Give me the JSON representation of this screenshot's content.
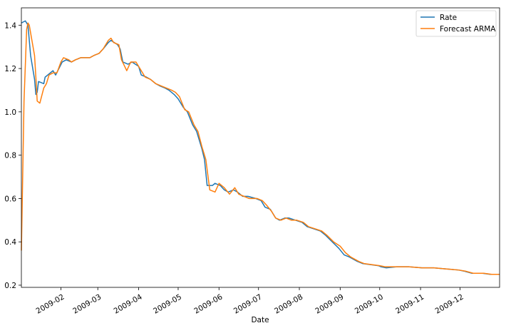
{
  "chart_data": {
    "type": "line",
    "title": "",
    "xlabel": "Date",
    "ylabel": "",
    "xlim": [
      "2009-01-02",
      "2009-12-31"
    ],
    "ylim": [
      0.19,
      1.48
    ],
    "grid": false,
    "legend_position": "top-right",
    "x_ticks": [
      "2009-02-01",
      "2009-03-01",
      "2009-04-01",
      "2009-05-01",
      "2009-06-01",
      "2009-07-01",
      "2009-08-01",
      "2009-09-01",
      "2009-10-01",
      "2009-11-01",
      "2009-12-01"
    ],
    "x_tick_labels": [
      "2009-02",
      "2009-03",
      "2009-04",
      "2009-05",
      "2009-06",
      "2009-07",
      "2009-08",
      "2009-09",
      "2009-10",
      "2009-11",
      "2009-12"
    ],
    "y_ticks": [
      0.2,
      0.4,
      0.6,
      0.8,
      1.0,
      1.2,
      1.4
    ],
    "y_tick_labels": [
      "0.2",
      "0.4",
      "0.6",
      "0.8",
      "1.0",
      "1.2",
      "1.4"
    ],
    "series": [
      {
        "name": "Rate",
        "color": "#1f77b4",
        "points": [
          [
            "2009-01-02",
            1.41
          ],
          [
            "2009-01-05",
            1.42
          ],
          [
            "2009-01-07",
            1.4
          ],
          [
            "2009-01-09",
            1.26
          ],
          [
            "2009-01-12",
            1.15
          ],
          [
            "2009-01-13",
            1.08
          ],
          [
            "2009-01-14",
            1.09
          ],
          [
            "2009-01-15",
            1.14
          ],
          [
            "2009-01-19",
            1.13
          ],
          [
            "2009-01-20",
            1.16
          ],
          [
            "2009-01-22",
            1.17
          ],
          [
            "2009-01-26",
            1.19
          ],
          [
            "2009-01-28",
            1.17
          ],
          [
            "2009-02-02",
            1.23
          ],
          [
            "2009-02-05",
            1.24
          ],
          [
            "2009-02-09",
            1.23
          ],
          [
            "2009-02-12",
            1.24
          ],
          [
            "2009-02-16",
            1.25
          ],
          [
            "2009-02-19",
            1.25
          ],
          [
            "2009-02-23",
            1.25
          ],
          [
            "2009-02-26",
            1.26
          ],
          [
            "2009-03-02",
            1.27
          ],
          [
            "2009-03-05",
            1.29
          ],
          [
            "2009-03-09",
            1.32
          ],
          [
            "2009-03-11",
            1.33
          ],
          [
            "2009-03-16",
            1.31
          ],
          [
            "2009-03-18",
            1.29
          ],
          [
            "2009-03-20",
            1.23
          ],
          [
            "2009-03-24",
            1.22
          ],
          [
            "2009-03-27",
            1.23
          ],
          [
            "2009-04-01",
            1.21
          ],
          [
            "2009-04-03",
            1.17
          ],
          [
            "2009-04-07",
            1.16
          ],
          [
            "2009-04-10",
            1.15
          ],
          [
            "2009-04-14",
            1.13
          ],
          [
            "2009-04-17",
            1.12
          ],
          [
            "2009-04-21",
            1.11
          ],
          [
            "2009-04-24",
            1.1
          ],
          [
            "2009-04-28",
            1.08
          ],
          [
            "2009-05-01",
            1.06
          ],
          [
            "2009-05-05",
            1.02
          ],
          [
            "2009-05-08",
            1.0
          ],
          [
            "2009-05-12",
            0.94
          ],
          [
            "2009-05-15",
            0.91
          ],
          [
            "2009-05-19",
            0.83
          ],
          [
            "2009-05-21",
            0.78
          ],
          [
            "2009-05-23",
            0.66
          ],
          [
            "2009-05-27",
            0.66
          ],
          [
            "2009-05-29",
            0.67
          ],
          [
            "2009-06-02",
            0.66
          ],
          [
            "2009-06-05",
            0.64
          ],
          [
            "2009-06-08",
            0.63
          ],
          [
            "2009-06-12",
            0.64
          ],
          [
            "2009-06-15",
            0.63
          ],
          [
            "2009-06-19",
            0.61
          ],
          [
            "2009-06-23",
            0.61
          ],
          [
            "2009-06-29",
            0.6
          ],
          [
            "2009-07-03",
            0.59
          ],
          [
            "2009-07-06",
            0.56
          ],
          [
            "2009-07-10",
            0.55
          ],
          [
            "2009-07-14",
            0.51
          ],
          [
            "2009-07-17",
            0.5
          ],
          [
            "2009-07-21",
            0.51
          ],
          [
            "2009-07-24",
            0.51
          ],
          [
            "2009-07-29",
            0.5
          ],
          [
            "2009-08-03",
            0.49
          ],
          [
            "2009-08-07",
            0.47
          ],
          [
            "2009-08-12",
            0.46
          ],
          [
            "2009-08-17",
            0.45
          ],
          [
            "2009-08-21",
            0.43
          ],
          [
            "2009-08-26",
            0.4
          ],
          [
            "2009-08-31",
            0.37
          ],
          [
            "2009-09-04",
            0.34
          ],
          [
            "2009-09-08",
            0.33
          ],
          [
            "2009-09-14",
            0.31
          ],
          [
            "2009-09-18",
            0.3
          ],
          [
            "2009-09-24",
            0.295
          ],
          [
            "2009-09-30",
            0.29
          ],
          [
            "2009-10-02",
            0.285
          ],
          [
            "2009-10-06",
            0.28
          ],
          [
            "2009-10-14",
            0.285
          ],
          [
            "2009-10-23",
            0.285
          ],
          [
            "2009-11-02",
            0.28
          ],
          [
            "2009-11-11",
            0.28
          ],
          [
            "2009-11-20",
            0.275
          ],
          [
            "2009-11-30",
            0.27
          ],
          [
            "2009-12-04",
            0.265
          ],
          [
            "2009-12-10",
            0.255
          ],
          [
            "2009-12-18",
            0.255
          ],
          [
            "2009-12-24",
            0.25
          ],
          [
            "2009-12-31",
            0.25
          ]
        ]
      },
      {
        "name": "Forecast ARMA",
        "color": "#ff7f0e",
        "points": [
          [
            "2009-01-02",
            0.36
          ],
          [
            "2009-01-04",
            1.05
          ],
          [
            "2009-01-06",
            1.38
          ],
          [
            "2009-01-07",
            1.41
          ],
          [
            "2009-01-08",
            1.4
          ],
          [
            "2009-01-10",
            1.33
          ],
          [
            "2009-01-12",
            1.26
          ],
          [
            "2009-01-13",
            1.16
          ],
          [
            "2009-01-14",
            1.05
          ],
          [
            "2009-01-16",
            1.04
          ],
          [
            "2009-01-19",
            1.11
          ],
          [
            "2009-01-21",
            1.13
          ],
          [
            "2009-01-23",
            1.17
          ],
          [
            "2009-01-26",
            1.18
          ],
          [
            "2009-01-29",
            1.18
          ],
          [
            "2009-02-01",
            1.23
          ],
          [
            "2009-02-03",
            1.25
          ],
          [
            "2009-02-07",
            1.24
          ],
          [
            "2009-02-09",
            1.23
          ],
          [
            "2009-02-12",
            1.24
          ],
          [
            "2009-02-16",
            1.25
          ],
          [
            "2009-02-19",
            1.25
          ],
          [
            "2009-02-23",
            1.25
          ],
          [
            "2009-02-26",
            1.26
          ],
          [
            "2009-03-02",
            1.27
          ],
          [
            "2009-03-05",
            1.29
          ],
          [
            "2009-03-09",
            1.33
          ],
          [
            "2009-03-11",
            1.34
          ],
          [
            "2009-03-13",
            1.32
          ],
          [
            "2009-03-17",
            1.31
          ],
          [
            "2009-03-19",
            1.24
          ],
          [
            "2009-03-23",
            1.19
          ],
          [
            "2009-03-26",
            1.23
          ],
          [
            "2009-03-30",
            1.23
          ],
          [
            "2009-04-02",
            1.2
          ],
          [
            "2009-04-06",
            1.16
          ],
          [
            "2009-04-10",
            1.15
          ],
          [
            "2009-04-14",
            1.13
          ],
          [
            "2009-04-18",
            1.12
          ],
          [
            "2009-04-22",
            1.11
          ],
          [
            "2009-04-26",
            1.1
          ],
          [
            "2009-04-29",
            1.09
          ],
          [
            "2009-05-02",
            1.07
          ],
          [
            "2009-05-06",
            1.01
          ],
          [
            "2009-05-09",
            1.0
          ],
          [
            "2009-05-13",
            0.94
          ],
          [
            "2009-05-16",
            0.91
          ],
          [
            "2009-05-19",
            0.84
          ],
          [
            "2009-05-22",
            0.78
          ],
          [
            "2009-05-25",
            0.64
          ],
          [
            "2009-05-29",
            0.63
          ],
          [
            "2009-06-01",
            0.67
          ],
          [
            "2009-06-05",
            0.65
          ],
          [
            "2009-06-09",
            0.62
          ],
          [
            "2009-06-13",
            0.65
          ],
          [
            "2009-06-16",
            0.62
          ],
          [
            "2009-06-20",
            0.61
          ],
          [
            "2009-06-24",
            0.6
          ],
          [
            "2009-06-30",
            0.6
          ],
          [
            "2009-07-04",
            0.59
          ],
          [
            "2009-07-07",
            0.57
          ],
          [
            "2009-07-11",
            0.54
          ],
          [
            "2009-07-14",
            0.51
          ],
          [
            "2009-07-18",
            0.5
          ],
          [
            "2009-07-22",
            0.51
          ],
          [
            "2009-07-26",
            0.5
          ],
          [
            "2009-07-30",
            0.5
          ],
          [
            "2009-08-04",
            0.49
          ],
          [
            "2009-08-08",
            0.47
          ],
          [
            "2009-08-13",
            0.46
          ],
          [
            "2009-08-18",
            0.45
          ],
          [
            "2009-08-22",
            0.43
          ],
          [
            "2009-08-27",
            0.4
          ],
          [
            "2009-09-01",
            0.38
          ],
          [
            "2009-09-05",
            0.35
          ],
          [
            "2009-09-09",
            0.33
          ],
          [
            "2009-09-15",
            0.31
          ],
          [
            "2009-09-19",
            0.3
          ],
          [
            "2009-09-25",
            0.295
          ],
          [
            "2009-10-01",
            0.29
          ],
          [
            "2009-10-05",
            0.285
          ],
          [
            "2009-10-14",
            0.285
          ],
          [
            "2009-10-23",
            0.285
          ],
          [
            "2009-11-02",
            0.28
          ],
          [
            "2009-11-11",
            0.28
          ],
          [
            "2009-11-20",
            0.275
          ],
          [
            "2009-11-30",
            0.27
          ],
          [
            "2009-12-05",
            0.265
          ],
          [
            "2009-12-11",
            0.255
          ],
          [
            "2009-12-19",
            0.255
          ],
          [
            "2009-12-25",
            0.25
          ],
          [
            "2009-12-31",
            0.25
          ]
        ]
      }
    ]
  }
}
